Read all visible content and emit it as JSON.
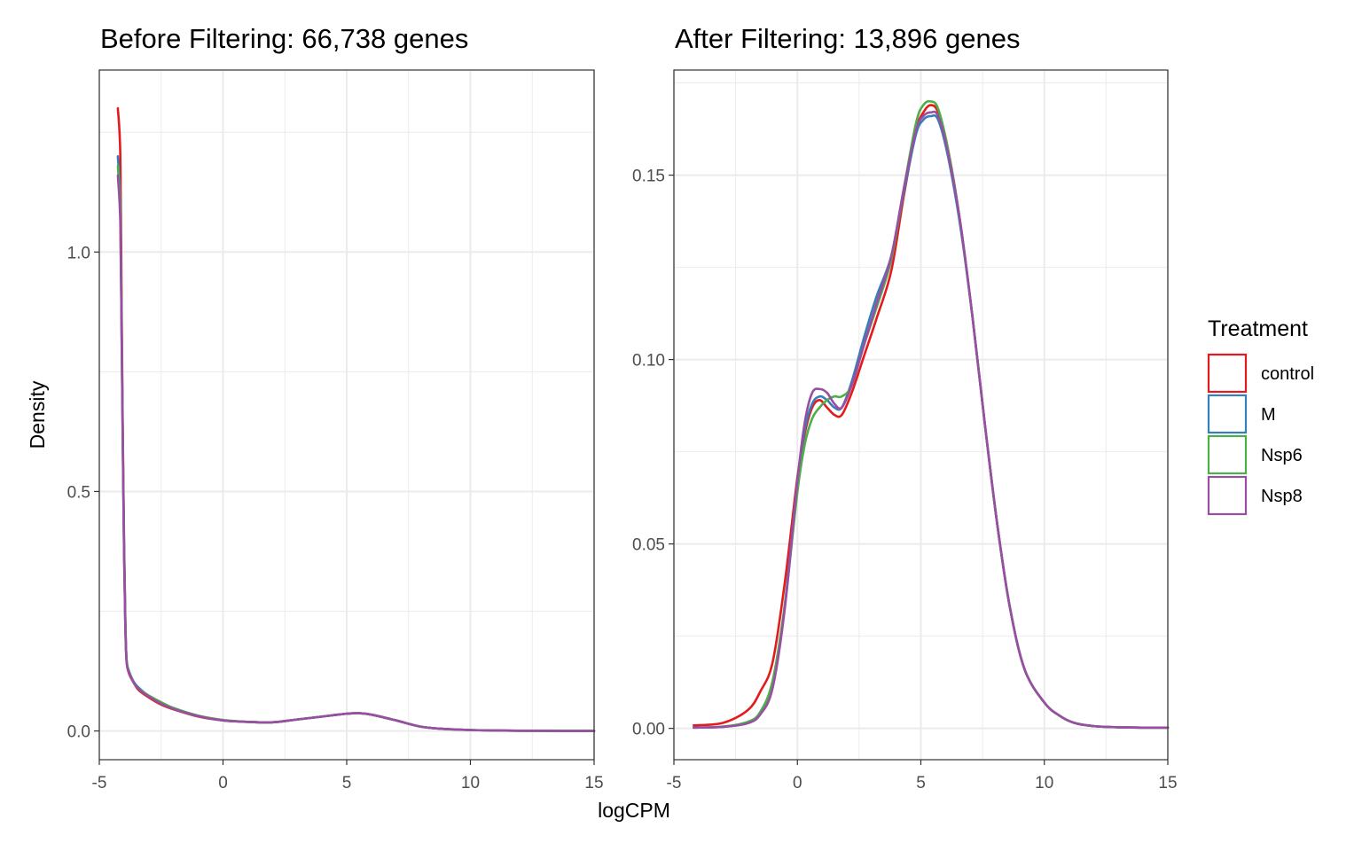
{
  "chart_data": [
    {
      "type": "line",
      "title": "Before Filtering: 66,738 genes",
      "xlabel": "logCPM",
      "ylabel": "Density",
      "xlim": [
        -5,
        15
      ],
      "ylim": [
        -0.06,
        1.38
      ],
      "x_ticks": [
        -5,
        0,
        5,
        10,
        15
      ],
      "x_tick_labels": [
        "-5",
        "0",
        "5",
        "10",
        "15"
      ],
      "y_ticks": [
        0,
        0.5,
        1
      ],
      "y_tick_labels": [
        "0.0",
        "0.5",
        "1.0"
      ],
      "series": [
        {
          "name": "control",
          "color": "#e41a1c",
          "x": [
            -4.25,
            -4.15,
            -4.1,
            -4.05,
            -4.0,
            -3.95,
            -3.9,
            -3.8,
            -3.6,
            -3.4,
            -3,
            -2.5,
            -2,
            -1,
            0,
            1,
            2,
            3,
            4,
            5,
            5.5,
            6,
            7,
            8,
            9,
            10,
            11,
            12,
            13,
            14,
            15
          ],
          "y": [
            1.3,
            1.2,
            0.9,
            0.62,
            0.4,
            0.24,
            0.15,
            0.12,
            0.1,
            0.085,
            0.07,
            0.055,
            0.045,
            0.03,
            0.022,
            0.019,
            0.018,
            0.024,
            0.03,
            0.036,
            0.037,
            0.034,
            0.022,
            0.009,
            0.004,
            0.002,
            0.001,
            0.0005,
            0.0002,
            0.0001,
            0.0001
          ]
        },
        {
          "name": "M",
          "color": "#377eb8",
          "x": [
            -4.25,
            -4.15,
            -4.1,
            -4.05,
            -4.0,
            -3.95,
            -3.9,
            -3.8,
            -3.6,
            -3.4,
            -3,
            -2.5,
            -2,
            -1,
            0,
            1,
            2,
            3,
            4,
            5,
            5.5,
            6,
            7,
            8,
            9,
            10,
            11,
            12,
            13,
            14,
            15
          ],
          "y": [
            1.2,
            1.1,
            0.85,
            0.6,
            0.38,
            0.23,
            0.15,
            0.125,
            0.102,
            0.09,
            0.073,
            0.058,
            0.046,
            0.031,
            0.022,
            0.019,
            0.018,
            0.024,
            0.03,
            0.036,
            0.037,
            0.034,
            0.022,
            0.009,
            0.004,
            0.002,
            0.001,
            0.0005,
            0.0002,
            0.0001,
            0.0001
          ]
        },
        {
          "name": "Nsp6",
          "color": "#4daf4a",
          "x": [
            -4.25,
            -4.15,
            -4.1,
            -4.05,
            -4.0,
            -3.95,
            -3.9,
            -3.8,
            -3.6,
            -3.4,
            -3,
            -2.5,
            -2,
            -1,
            0,
            1,
            2,
            3,
            4,
            5,
            5.5,
            6,
            7,
            8,
            9,
            10,
            11,
            12,
            13,
            14,
            15
          ],
          "y": [
            1.18,
            1.08,
            0.84,
            0.6,
            0.38,
            0.23,
            0.15,
            0.124,
            0.1,
            0.088,
            0.074,
            0.06,
            0.048,
            0.032,
            0.023,
            0.019,
            0.018,
            0.024,
            0.03,
            0.036,
            0.037,
            0.034,
            0.022,
            0.009,
            0.004,
            0.002,
            0.001,
            0.0005,
            0.0002,
            0.0001,
            0.0001
          ]
        },
        {
          "name": "Nsp8",
          "color": "#984ea3",
          "x": [
            -4.25,
            -4.15,
            -4.1,
            -4.05,
            -4.0,
            -3.95,
            -3.9,
            -3.8,
            -3.6,
            -3.4,
            -3,
            -2.5,
            -2,
            -1,
            0,
            1,
            2,
            3,
            4,
            5,
            5.5,
            6,
            7,
            8,
            9,
            10,
            11,
            12,
            13,
            14,
            15
          ],
          "y": [
            1.16,
            1.06,
            0.83,
            0.59,
            0.37,
            0.22,
            0.145,
            0.122,
            0.1,
            0.087,
            0.072,
            0.057,
            0.046,
            0.031,
            0.022,
            0.019,
            0.018,
            0.024,
            0.03,
            0.036,
            0.037,
            0.034,
            0.022,
            0.009,
            0.004,
            0.002,
            0.001,
            0.0005,
            0.0002,
            0.0001,
            0.0001
          ]
        }
      ]
    },
    {
      "type": "line",
      "title": "After Filtering: 13,896 genes",
      "xlabel": "logCPM",
      "ylabel": "Density",
      "xlim": [
        -5,
        15
      ],
      "ylim": [
        -0.0085,
        0.1785
      ],
      "x_ticks": [
        -5,
        0,
        5,
        10,
        15
      ],
      "x_tick_labels": [
        "-5",
        "0",
        "5",
        "10",
        "15"
      ],
      "y_ticks": [
        0,
        0.05,
        0.1,
        0.15
      ],
      "y_tick_labels": [
        "0.00",
        "0.05",
        "0.10",
        "0.15"
      ],
      "series": [
        {
          "name": "control",
          "color": "#e41a1c",
          "x": [
            -4.2,
            -3,
            -2,
            -1.5,
            -1,
            -0.5,
            0,
            0.3,
            0.6,
            0.9,
            1.2,
            1.5,
            1.8,
            2.2,
            2.7,
            3.2,
            3.8,
            4.3,
            4.8,
            5.1,
            5.4,
            5.7,
            6.1,
            6.6,
            7.1,
            7.6,
            8.1,
            8.6,
            9.2,
            10,
            10.6,
            11.2,
            12,
            13,
            14,
            15
          ],
          "y": [
            0.0008,
            0.0015,
            0.005,
            0.01,
            0.018,
            0.04,
            0.068,
            0.08,
            0.087,
            0.089,
            0.087,
            0.085,
            0.085,
            0.091,
            0.101,
            0.111,
            0.124,
            0.144,
            0.162,
            0.167,
            0.169,
            0.167,
            0.157,
            0.137,
            0.111,
            0.082,
            0.055,
            0.033,
            0.016,
            0.007,
            0.0035,
            0.0015,
            0.0006,
            0.0003,
            0.0002,
            0.0002
          ]
        },
        {
          "name": "M",
          "color": "#377eb8",
          "x": [
            -4.2,
            -3,
            -2,
            -1.5,
            -1,
            -0.5,
            0,
            0.3,
            0.6,
            0.9,
            1.2,
            1.5,
            1.8,
            2.2,
            2.7,
            3.2,
            3.8,
            4.3,
            4.8,
            5.1,
            5.4,
            5.7,
            6.1,
            6.6,
            7.1,
            7.6,
            8.1,
            8.6,
            9.2,
            10,
            10.6,
            11.2,
            12,
            13,
            14,
            15
          ],
          "y": [
            0.0002,
            0.0004,
            0.0015,
            0.004,
            0.012,
            0.034,
            0.067,
            0.081,
            0.088,
            0.09,
            0.089,
            0.087,
            0.087,
            0.094,
            0.106,
            0.117,
            0.128,
            0.145,
            0.161,
            0.165,
            0.166,
            0.165,
            0.155,
            0.136,
            0.111,
            0.082,
            0.055,
            0.033,
            0.016,
            0.007,
            0.0035,
            0.0015,
            0.0006,
            0.0003,
            0.0002,
            0.0002
          ]
        },
        {
          "name": "Nsp6",
          "color": "#4daf4a",
          "x": [
            -4.2,
            -3,
            -2,
            -1.5,
            -1,
            -0.5,
            0,
            0.3,
            0.6,
            0.9,
            1.2,
            1.5,
            1.8,
            2.2,
            2.7,
            3.2,
            3.8,
            4.3,
            4.8,
            5.1,
            5.4,
            5.7,
            6.1,
            6.6,
            7.1,
            7.6,
            8.1,
            8.6,
            9.2,
            10,
            10.6,
            11.2,
            12,
            13,
            14,
            15
          ],
          "y": [
            0.0002,
            0.0005,
            0.0018,
            0.0045,
            0.013,
            0.034,
            0.064,
            0.077,
            0.084,
            0.087,
            0.089,
            0.09,
            0.09,
            0.093,
            0.104,
            0.114,
            0.127,
            0.146,
            0.164,
            0.169,
            0.17,
            0.168,
            0.157,
            0.137,
            0.111,
            0.082,
            0.055,
            0.033,
            0.016,
            0.007,
            0.0035,
            0.0015,
            0.0006,
            0.0003,
            0.0002,
            0.0002
          ]
        },
        {
          "name": "Nsp8",
          "color": "#984ea3",
          "x": [
            -4.2,
            -3,
            -2,
            -1.5,
            -1,
            -0.5,
            0,
            0.3,
            0.6,
            0.9,
            1.2,
            1.5,
            1.8,
            2.2,
            2.7,
            3.2,
            3.8,
            4.3,
            4.8,
            5.1,
            5.4,
            5.7,
            6.1,
            6.6,
            7.1,
            7.6,
            8.1,
            8.6,
            9.2,
            10,
            10.6,
            11.2,
            12,
            13,
            14,
            15
          ],
          "y": [
            0.0002,
            0.0004,
            0.0014,
            0.0038,
            0.011,
            0.033,
            0.067,
            0.083,
            0.091,
            0.092,
            0.091,
            0.088,
            0.087,
            0.093,
            0.104,
            0.115,
            0.128,
            0.146,
            0.162,
            0.166,
            0.167,
            0.166,
            0.156,
            0.137,
            0.111,
            0.082,
            0.055,
            0.033,
            0.016,
            0.007,
            0.0035,
            0.0015,
            0.0006,
            0.0003,
            0.0002,
            0.0002
          ]
        }
      ]
    }
  ],
  "legend": {
    "title": "Treatment",
    "entries": [
      {
        "label": "control",
        "color": "#e41a1c"
      },
      {
        "label": "M",
        "color": "#377eb8"
      },
      {
        "label": "Nsp6",
        "color": "#4daf4a"
      },
      {
        "label": "Nsp8",
        "color": "#984ea3"
      }
    ]
  },
  "shared_axes": {
    "xlabel": "logCPM",
    "ylabel": "Density"
  }
}
